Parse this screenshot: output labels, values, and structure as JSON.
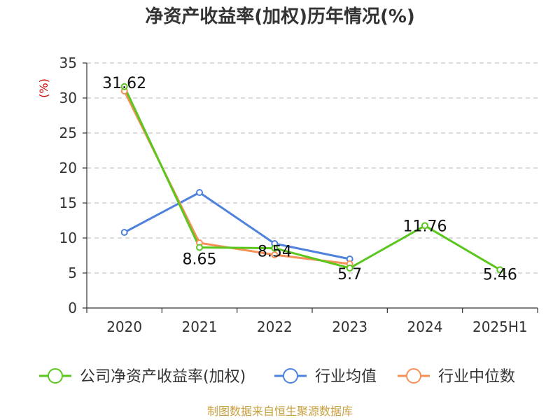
{
  "chart_data": {
    "type": "line",
    "title": "净资产收益率(加权)历年情况(%)",
    "ylabel": "(%)",
    "categories": [
      "2020",
      "2021",
      "2022",
      "2023",
      "2024",
      "2025H1"
    ],
    "ylim": [
      0,
      35
    ],
    "yticks": [
      0,
      5,
      10,
      15,
      20,
      25,
      30,
      35
    ],
    "grid": true,
    "legend_position": "bottom",
    "series": [
      {
        "name": "公司净资产收益率(加权)",
        "color": "#5ac61e",
        "values": [
          31.62,
          8.65,
          8.54,
          5.7,
          11.76,
          5.46
        ],
        "labels": [
          "31.62",
          "8.65",
          "8.54",
          "5.7",
          "11.76",
          "5.46"
        ]
      },
      {
        "name": "行业均值",
        "color": "#4f82dc",
        "values": [
          10.8,
          16.5,
          9.2,
          7.0,
          null,
          null
        ]
      },
      {
        "name": "行业中位数",
        "color": "#f59058",
        "values": [
          31.0,
          9.3,
          7.6,
          6.3,
          null,
          null
        ]
      }
    ],
    "source": "制图数据来自恒生聚源数据库"
  }
}
